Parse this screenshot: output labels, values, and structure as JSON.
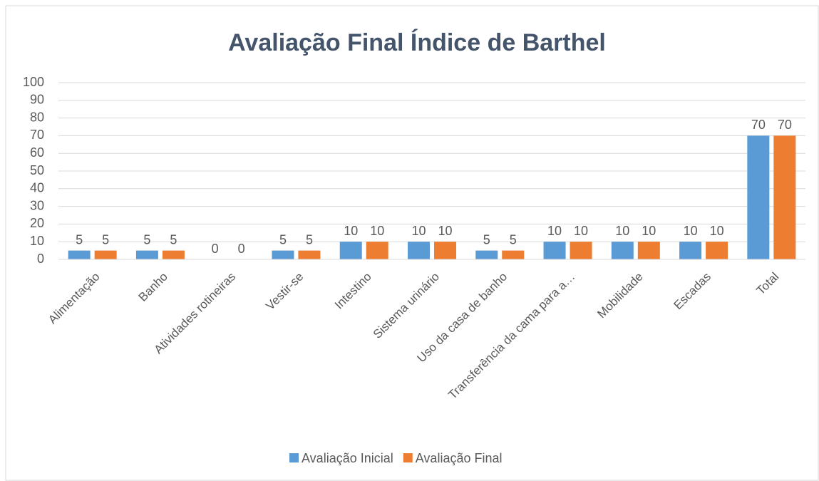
{
  "chart_data": {
    "type": "bar",
    "title": "Avaliação Final Índice de Barthel",
    "categories": [
      "Alimentação",
      "Banho",
      "Atividades rotineiras",
      "Vestir-se",
      "Intestino",
      "Sistema urinário",
      "Uso da casa de banho",
      "Transferência da cama para a…",
      "Mobilidade",
      "Escadas",
      "Total"
    ],
    "series": [
      {
        "name": "Avaliação Inicial",
        "color": "#5b9bd5",
        "values": [
          5,
          5,
          0,
          5,
          10,
          10,
          5,
          10,
          10,
          10,
          70
        ]
      },
      {
        "name": "Avaliação Final",
        "color": "#ed7d31",
        "values": [
          5,
          5,
          0,
          5,
          10,
          10,
          5,
          10,
          10,
          10,
          70
        ]
      }
    ],
    "ylim": [
      0,
      100
    ],
    "yticks": [
      0,
      10,
      20,
      30,
      40,
      50,
      60,
      70,
      80,
      90,
      100
    ],
    "grid": true,
    "legend": "bottom"
  }
}
